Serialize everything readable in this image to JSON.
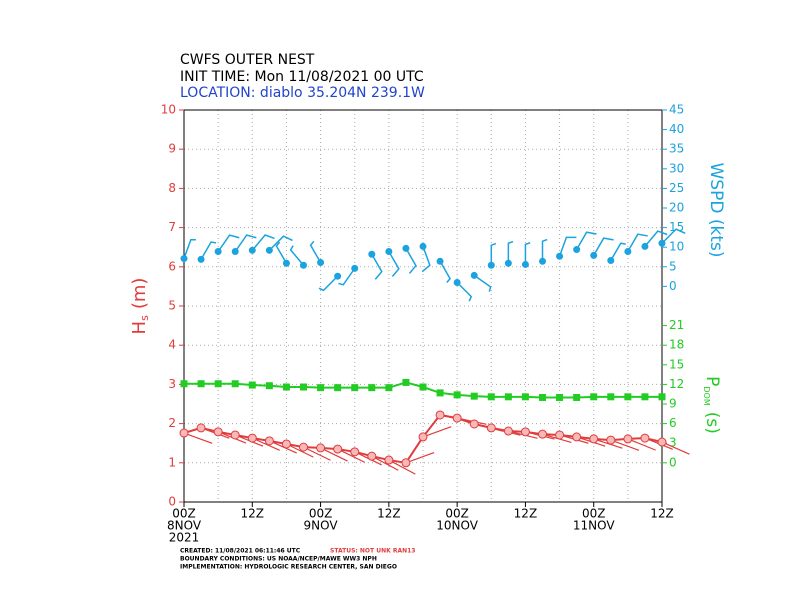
{
  "chart_data": {
    "type": "line",
    "title": "CWFS OUTER NEST",
    "subtitle": "INIT TIME: Mon 11/08/2021 00 UTC",
    "location": "LOCATION: diablo 35.204N 239.1W",
    "y_label": {
      "main": "H",
      "sub": "s",
      "unit": "(m)"
    },
    "y2_label": "WSPD (kts)",
    "y3_label": {
      "main": "P",
      "sub": "DOM",
      "unit": "(s)"
    },
    "xlim": [
      0,
      84
    ],
    "xticks": [
      {
        "value": 0,
        "label": "00Z"
      },
      {
        "value": 12,
        "label": "12Z"
      },
      {
        "value": 24,
        "label": "00Z"
      },
      {
        "value": 36,
        "label": "12Z"
      },
      {
        "value": 48,
        "label": "00Z"
      },
      {
        "value": 60,
        "label": "12Z"
      },
      {
        "value": 72,
        "label": "00Z"
      },
      {
        "value": 84,
        "label": "12Z"
      }
    ],
    "date_labels": [
      {
        "value": 0,
        "label": "8NOV"
      },
      {
        "value": 24,
        "label": "9NOV"
      },
      {
        "value": 48,
        "label": "10NOV"
      },
      {
        "value": 72,
        "label": "11NOV"
      }
    ],
    "year_label": "2021",
    "grid_x": [
      0,
      6,
      12,
      18,
      24,
      30,
      36,
      42,
      48,
      54,
      60,
      66,
      72,
      78,
      84
    ],
    "ylim": [
      0,
      10
    ],
    "yticks": [
      0,
      1,
      2,
      3,
      4,
      5,
      6,
      7,
      8,
      9,
      10
    ],
    "y2lim": [
      -55,
      45
    ],
    "y2ticks": [
      0,
      5,
      10,
      15,
      20,
      25,
      30,
      35,
      40,
      45
    ],
    "y3lim": [
      -6,
      54
    ],
    "y3ticks": [
      0,
      3,
      6,
      9,
      12,
      15,
      18,
      21
    ],
    "grid": true,
    "x": [
      0,
      3,
      6,
      9,
      12,
      15,
      18,
      21,
      24,
      27,
      30,
      33,
      36,
      39,
      42,
      45,
      48,
      51,
      54,
      57,
      60,
      63,
      66,
      69,
      72,
      75,
      78,
      81,
      84
    ],
    "series": [
      {
        "name": "Hs",
        "color": "#e03c3c",
        "axis": "y",
        "values": [
          1.76,
          1.89,
          1.79,
          1.71,
          1.63,
          1.56,
          1.48,
          1.4,
          1.38,
          1.35,
          1.28,
          1.17,
          1.07,
          1.0,
          1.66,
          2.22,
          2.14,
          1.99,
          1.89,
          1.81,
          1.79,
          1.73,
          1.71,
          1.66,
          1.61,
          1.58,
          1.61,
          1.63,
          1.53
        ],
        "dir": [
          290,
          290,
          292,
          292,
          294,
          294,
          296,
          296,
          296,
          296,
          296,
          298,
          298,
          250,
          250,
          282,
          282,
          284,
          284,
          284,
          284,
          286,
          286,
          288,
          288,
          290,
          292,
          292,
          294
        ]
      },
      {
        "name": "Pdom",
        "color": "#22cc22",
        "axis": "y3",
        "values": [
          12.1,
          12.1,
          12.1,
          12.1,
          11.9,
          11.8,
          11.6,
          11.6,
          11.5,
          11.5,
          11.5,
          11.5,
          11.5,
          12.3,
          11.6,
          10.7,
          10.4,
          10.2,
          10.1,
          10.1,
          10.1,
          10.0,
          10.0,
          10.0,
          10.1,
          10.1,
          10.1,
          10.1,
          10.1
        ]
      },
      {
        "name": "WSPD",
        "color": "#1aa3e0",
        "axis": "y2",
        "values": [
          7.1,
          6.9,
          8.9,
          8.9,
          9.2,
          9.2,
          5.9,
          5.4,
          6.1,
          2.6,
          4.6,
          8.2,
          8.9,
          9.7,
          10.2,
          6.4,
          1.0,
          2.8,
          5.4,
          5.9,
          5.6,
          6.4,
          7.7,
          9.4,
          7.9,
          6.6,
          8.9,
          10.2,
          11.0
        ],
        "dir": [
          20,
          30,
          35,
          35,
          40,
          45,
          330,
          320,
          330,
          225,
          215,
          150,
          150,
          150,
          160,
          150,
          135,
          125,
          0,
          0,
          0,
          0,
          20,
          30,
          30,
          30,
          30,
          40,
          45
        ]
      }
    ],
    "footer": {
      "created": "CREATED: 11/08/2021 06:11:46 UTC",
      "status": "STATUS: NOT UNK RAN13",
      "boundary": "BOUNDARY CONDITIONS: US NOAA/NCEP/MAWE WW3 NPH",
      "implementation": "IMPLEMENTATION: HYDROLOGIC RESEARCH CENTER, SAN DIEGO"
    }
  }
}
